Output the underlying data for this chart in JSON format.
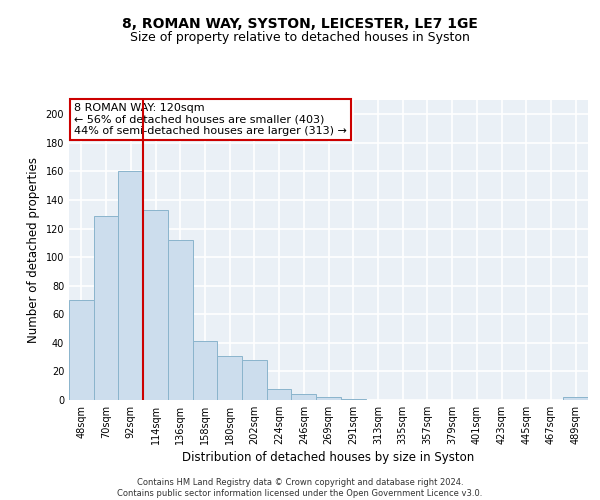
{
  "title1": "8, ROMAN WAY, SYSTON, LEICESTER, LE7 1GE",
  "title2": "Size of property relative to detached houses in Syston",
  "xlabel": "Distribution of detached houses by size in Syston",
  "ylabel": "Number of detached properties",
  "footer1": "Contains HM Land Registry data © Crown copyright and database right 2024.",
  "footer2": "Contains public sector information licensed under the Open Government Licence v3.0.",
  "bin_labels": [
    "48sqm",
    "70sqm",
    "92sqm",
    "114sqm",
    "136sqm",
    "158sqm",
    "180sqm",
    "202sqm",
    "224sqm",
    "246sqm",
    "269sqm",
    "291sqm",
    "313sqm",
    "335sqm",
    "357sqm",
    "379sqm",
    "401sqm",
    "423sqm",
    "445sqm",
    "467sqm",
    "489sqm"
  ],
  "bar_values": [
    70,
    129,
    160,
    133,
    112,
    41,
    31,
    28,
    8,
    4,
    2,
    1,
    0,
    0,
    0,
    0,
    0,
    0,
    0,
    0,
    2
  ],
  "bar_color": "#ccdded",
  "bar_edge_color": "#8ab4cc",
  "vline_color": "#cc0000",
  "vline_pos": 2.5,
  "annotation_text": "8 ROMAN WAY: 120sqm\n← 56% of detached houses are smaller (403)\n44% of semi-detached houses are larger (313) →",
  "annotation_box_color": "#ffffff",
  "annotation_box_edge": "#cc0000",
  "ylim": [
    0,
    210
  ],
  "yticks": [
    0,
    20,
    40,
    60,
    80,
    100,
    120,
    140,
    160,
    180,
    200
  ],
  "bg_color": "#eaf0f6",
  "grid_color": "#ffffff",
  "title1_fontsize": 10,
  "title2_fontsize": 9,
  "axis_label_fontsize": 8.5,
  "tick_fontsize": 7,
  "footer_fontsize": 6,
  "annotation_fontsize": 8
}
